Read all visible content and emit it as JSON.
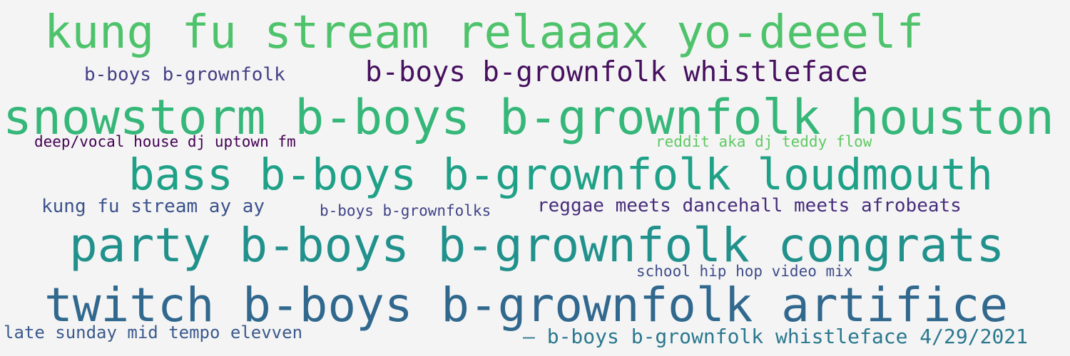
{
  "words": [
    {
      "text": "kung fu stream relaaax yo-deeelf",
      "color": "#4ec36b"
    },
    {
      "text": "b-boys b-grownfolk",
      "color": "#433e85"
    },
    {
      "text": "b-boys b-grownfolk whistleface",
      "color": "#46105f"
    },
    {
      "text": "snowstorm b-boys b-grownfolk houston",
      "color": "#35b779"
    },
    {
      "text": "deep/vocal house dj uptown fm",
      "color": "#440154"
    },
    {
      "text": "reddit aka dj teddy flow",
      "color": "#5ec962"
    },
    {
      "text": "bass b-boys b-grownfolk loudmouth",
      "color": "#1fa188"
    },
    {
      "text": "kung fu stream ay ay",
      "color": "#3b528b"
    },
    {
      "text": "b-boys b-grownfolks",
      "color": "#404387"
    },
    {
      "text": "reggae meets dancehall meets afrobeats",
      "color": "#472d7b"
    },
    {
      "text": "party b-boys b-grownfolk congrats",
      "color": "#21918c"
    },
    {
      "text": "school hip hop video mix",
      "color": "#3e4c8a"
    },
    {
      "text": "twitch b-boys b-grownfolk artifice",
      "color": "#31688e"
    },
    {
      "text": "late sunday mid tempo elevven",
      "color": "#3b5a8d"
    },
    {
      "text": "— b-boys b-grownfolk whistleface 4/29/2021",
      "color": "#2a788e"
    }
  ]
}
